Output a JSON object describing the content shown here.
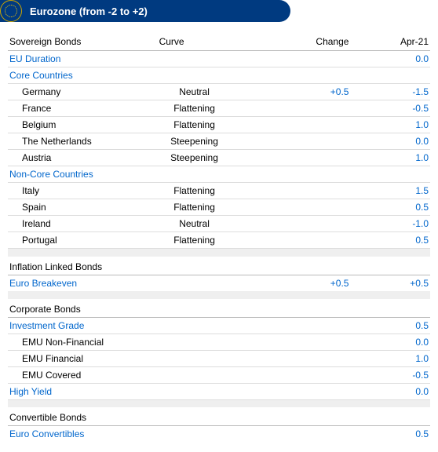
{
  "header": {
    "title": "Eurozone (from -2 to +2)"
  },
  "columns": {
    "name": "Sovereign Bonds",
    "curve": "Curve",
    "change": "Change",
    "apr": "Apr-21"
  },
  "colors": {
    "accent": "#0066cc",
    "header_bg": "#003a80",
    "border": "#bbbbbb",
    "row_border": "#dddddd",
    "spacer_bg": "#efefef"
  },
  "sovereign": {
    "eu_duration": {
      "name": "EU Duration",
      "apr": "0.0"
    },
    "core_label": "Core Countries",
    "core": [
      {
        "name": "Germany",
        "curve": "Neutral",
        "change": "+0.5",
        "apr": "-1.5"
      },
      {
        "name": "France",
        "curve": "Flattening",
        "change": "",
        "apr": "-0.5"
      },
      {
        "name": "Belgium",
        "curve": "Flattening",
        "change": "",
        "apr": "1.0"
      },
      {
        "name": "The Netherlands",
        "curve": "Steepening",
        "change": "",
        "apr": "0.0"
      },
      {
        "name": "Austria",
        "curve": "Steepening",
        "change": "",
        "apr": "1.0"
      }
    ],
    "noncore_label": "Non-Core  Countries",
    "noncore": [
      {
        "name": "Italy",
        "curve": "Flattening",
        "change": "",
        "apr": "1.5"
      },
      {
        "name": "Spain",
        "curve": "Flattening",
        "change": "",
        "apr": "0.5"
      },
      {
        "name": "Ireland",
        "curve": "Neutral",
        "change": "",
        "apr": "-1.0"
      },
      {
        "name": "Portugal",
        "curve": "Flattening",
        "change": "",
        "apr": "0.5"
      }
    ]
  },
  "inflation": {
    "header": "Inflation Linked Bonds",
    "breakeven": {
      "name": "Euro Breakeven",
      "change": "+0.5",
      "apr": "+0.5"
    }
  },
  "corporate": {
    "header": "Corporate Bonds",
    "ig_label": "Investment Grade",
    "ig_apr": "0.5",
    "ig": [
      {
        "name": "EMU Non-Financial",
        "apr": "0.0"
      },
      {
        "name": "EMU Financial",
        "apr": "1.0"
      },
      {
        "name": "EMU Covered",
        "apr": "-0.5"
      }
    ],
    "hy": {
      "name": "High Yield",
      "apr": "0.0"
    }
  },
  "convertible": {
    "header": "Convertible Bonds",
    "row": {
      "name": "Euro Convertibles",
      "apr": "0.5"
    }
  }
}
